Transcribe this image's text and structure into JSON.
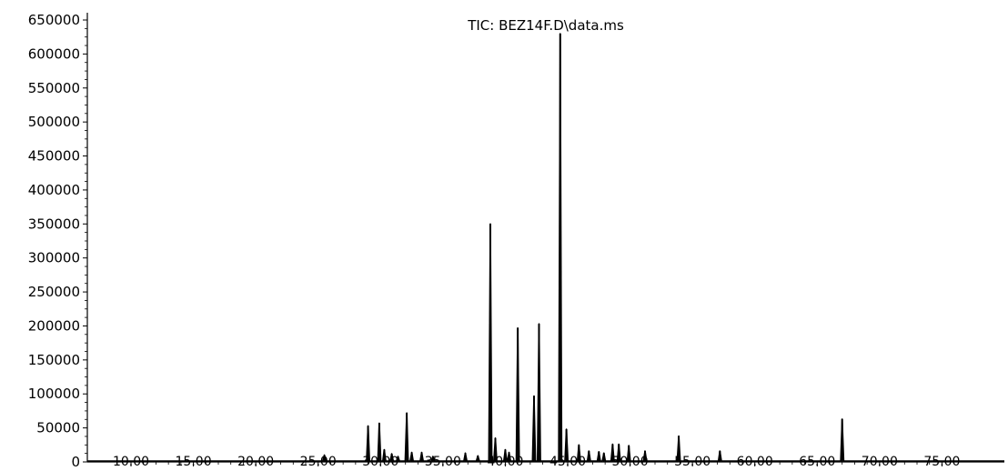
{
  "chart_data": {
    "type": "line",
    "title": "TIC: BEZ14F.D\\data.ms",
    "xlabel": "",
    "ylabel": "",
    "xlim": [
      6.5,
      80.0
    ],
    "ylim": [
      0,
      650000
    ],
    "grid": false,
    "y_ticks": [
      0,
      50000,
      100000,
      150000,
      200000,
      250000,
      300000,
      350000,
      400000,
      450000,
      500000,
      550000,
      600000,
      650000
    ],
    "y_tick_labels": [
      "0",
      "50000",
      "100000",
      "150000",
      "200000",
      "250000",
      "300000",
      "350000",
      "400000",
      "450000",
      "500000",
      "550000",
      "600000",
      "650000"
    ],
    "x_ticks": [
      10,
      15,
      20,
      25,
      30,
      35,
      40,
      45,
      50,
      55,
      60,
      65,
      70,
      75
    ],
    "x_tick_labels": [
      "10.00",
      "15.00",
      "20.00",
      "25.00",
      "30.00",
      "35.00",
      "40.00",
      "45.00",
      "50.00",
      "55.00",
      "60.00",
      "65.00",
      "70.00",
      "75.00"
    ],
    "series": [
      {
        "peaks": [
          [
            25.5,
            10000
          ],
          [
            29.0,
            53000
          ],
          [
            29.9,
            57000
          ],
          [
            30.3,
            18000
          ],
          [
            30.9,
            12000
          ],
          [
            31.4,
            8000
          ],
          [
            32.1,
            72000
          ],
          [
            32.5,
            14000
          ],
          [
            33.3,
            14000
          ],
          [
            34.2,
            8000
          ],
          [
            36.8,
            13000
          ],
          [
            37.8,
            9000
          ],
          [
            38.8,
            350000
          ],
          [
            39.2,
            35000
          ],
          [
            40.0,
            18000
          ],
          [
            40.3,
            14000
          ],
          [
            41.0,
            197000
          ],
          [
            42.3,
            97000
          ],
          [
            42.7,
            203000
          ],
          [
            44.4,
            630000
          ],
          [
            44.9,
            48000
          ],
          [
            45.9,
            25000
          ],
          [
            46.7,
            16000
          ],
          [
            47.5,
            15000
          ],
          [
            47.9,
            13000
          ],
          [
            48.6,
            26000
          ],
          [
            49.1,
            26000
          ],
          [
            49.9,
            24000
          ],
          [
            51.2,
            16000
          ],
          [
            53.9,
            38000
          ],
          [
            57.2,
            16000
          ],
          [
            67.0,
            63000
          ]
        ]
      }
    ]
  }
}
